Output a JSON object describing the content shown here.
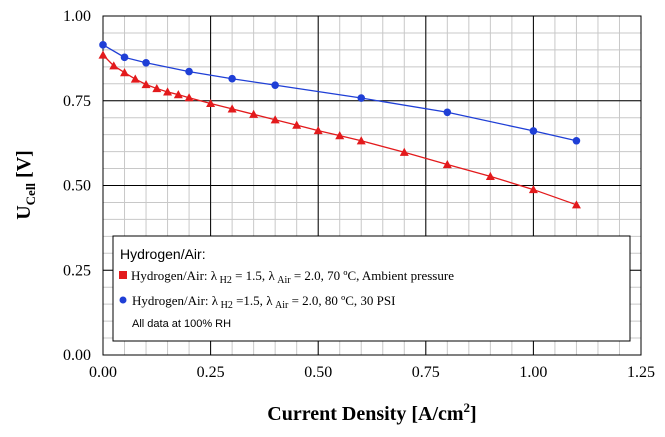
{
  "chart_data": {
    "type": "line",
    "xlabel": "Current Density [A/cm",
    "xlabel_sup": "2",
    "xlabel_end": "]",
    "ylabel_main": "U",
    "ylabel_sub": "Cell",
    "ylabel_end": " [V]",
    "xlim": [
      0,
      1.25
    ],
    "ylim": [
      0,
      1.0
    ],
    "x_ticks": [
      "0.00",
      "0.25",
      "0.50",
      "0.75",
      "1.00",
      "1.25"
    ],
    "y_ticks": [
      "0.00",
      "0.25",
      "0.50",
      "0.75",
      "1.00"
    ],
    "grid": true,
    "legend": {
      "title": "Hydrogen/Air:",
      "note": "All data at 100% RH",
      "placement": "bottom-left"
    },
    "series": [
      {
        "name": "Hydrogen/Air: λ H2 = 1.5, λ Air = 2.0, 70 ºC, Ambient pressure",
        "legend_parts": {
          "a": "Hydrogen/Air: ",
          "lambda1": "λ",
          "sub1": " H2",
          "b": " = 1.5, ",
          "lambda2": "λ",
          "sub2": " Air",
          "c": " = 2.0, 70 ºC, Ambient pressure"
        },
        "color": "#e31a1c",
        "marker": "triangle",
        "x": [
          0.0,
          0.025,
          0.05,
          0.075,
          0.1,
          0.125,
          0.15,
          0.175,
          0.2,
          0.25,
          0.3,
          0.35,
          0.4,
          0.45,
          0.5,
          0.55,
          0.6,
          0.7,
          0.8,
          0.9,
          1.0,
          1.1
        ],
        "y": [
          0.885,
          0.853,
          0.833,
          0.814,
          0.798,
          0.786,
          0.776,
          0.768,
          0.759,
          0.742,
          0.726,
          0.71,
          0.694,
          0.678,
          0.662,
          0.647,
          0.632,
          0.598,
          0.562,
          0.527,
          0.488,
          0.443
        ]
      },
      {
        "name": "Hydrogen/Air: λ H2 =1.5, λ Air = 2.0, 80 ºC, 30 PSI",
        "legend_parts": {
          "a": "Hydrogen/Air: ",
          "lambda1": "λ",
          "sub1": " H2",
          "b": " =1.5, ",
          "lambda2": "λ",
          "sub2": " Air",
          "c": " = 2.0, 80 ºC, 30 PSI"
        },
        "color": "#1f3fd6",
        "marker": "circle",
        "x": [
          0.0,
          0.05,
          0.1,
          0.2,
          0.3,
          0.4,
          0.6,
          0.8,
          1.0,
          1.1
        ],
        "y": [
          0.915,
          0.878,
          0.862,
          0.836,
          0.815,
          0.796,
          0.758,
          0.716,
          0.661,
          0.632
        ]
      }
    ]
  }
}
